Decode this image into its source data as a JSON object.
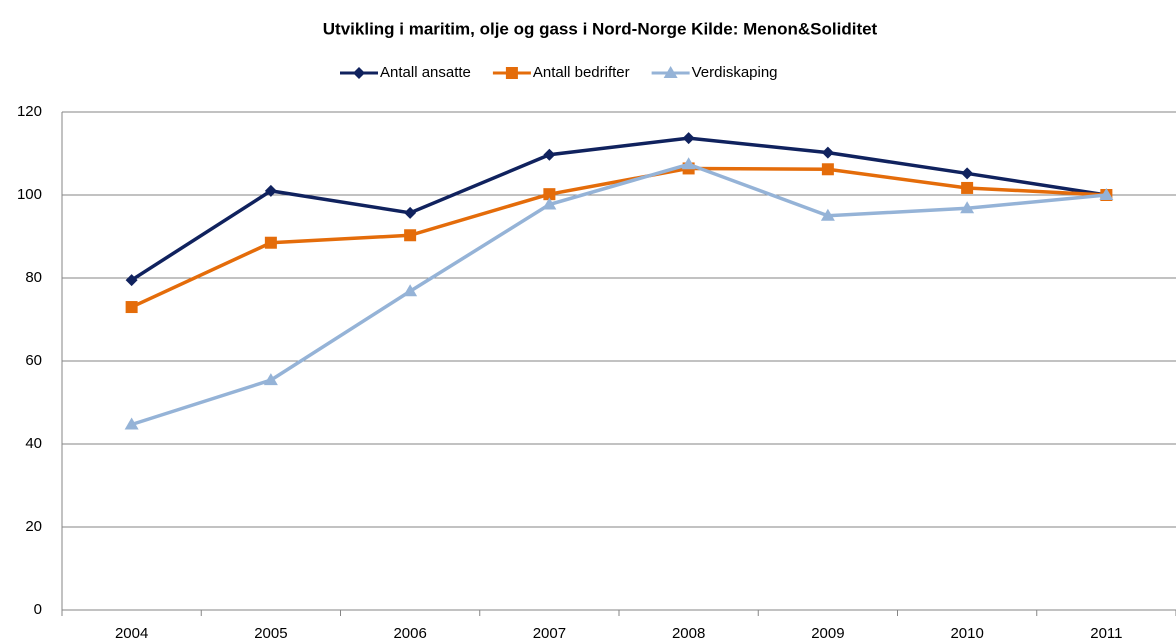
{
  "chart_data": {
    "type": "line",
    "title": "Utvikling i maritim, olje og gass i Nord-Norge Kilde: Menon&Soliditet",
    "categories": [
      "2004",
      "2005",
      "2006",
      "2007",
      "2008",
      "2009",
      "2010",
      "2011"
    ],
    "series": [
      {
        "name": "Antall ansatte",
        "color": "#10225e",
        "marker": "diamond",
        "values": [
          79.5,
          101,
          95.7,
          109.7,
          113.7,
          110.2,
          105.2,
          100
        ]
      },
      {
        "name": "Antall bedrifter",
        "color": "#e46c0a",
        "marker": "square",
        "values": [
          73,
          88.5,
          90.3,
          100.2,
          106.4,
          106.2,
          101.7,
          100
        ]
      },
      {
        "name": "Verdiskaping",
        "color": "#95b3d7",
        "marker": "triangle",
        "values": [
          44.7,
          55.4,
          76.8,
          97.7,
          107.4,
          95,
          96.8,
          100
        ]
      }
    ],
    "ylim": [
      0,
      120
    ],
    "yticks": [
      0,
      20,
      40,
      60,
      80,
      100,
      120
    ],
    "grid": true,
    "legend": "top"
  }
}
